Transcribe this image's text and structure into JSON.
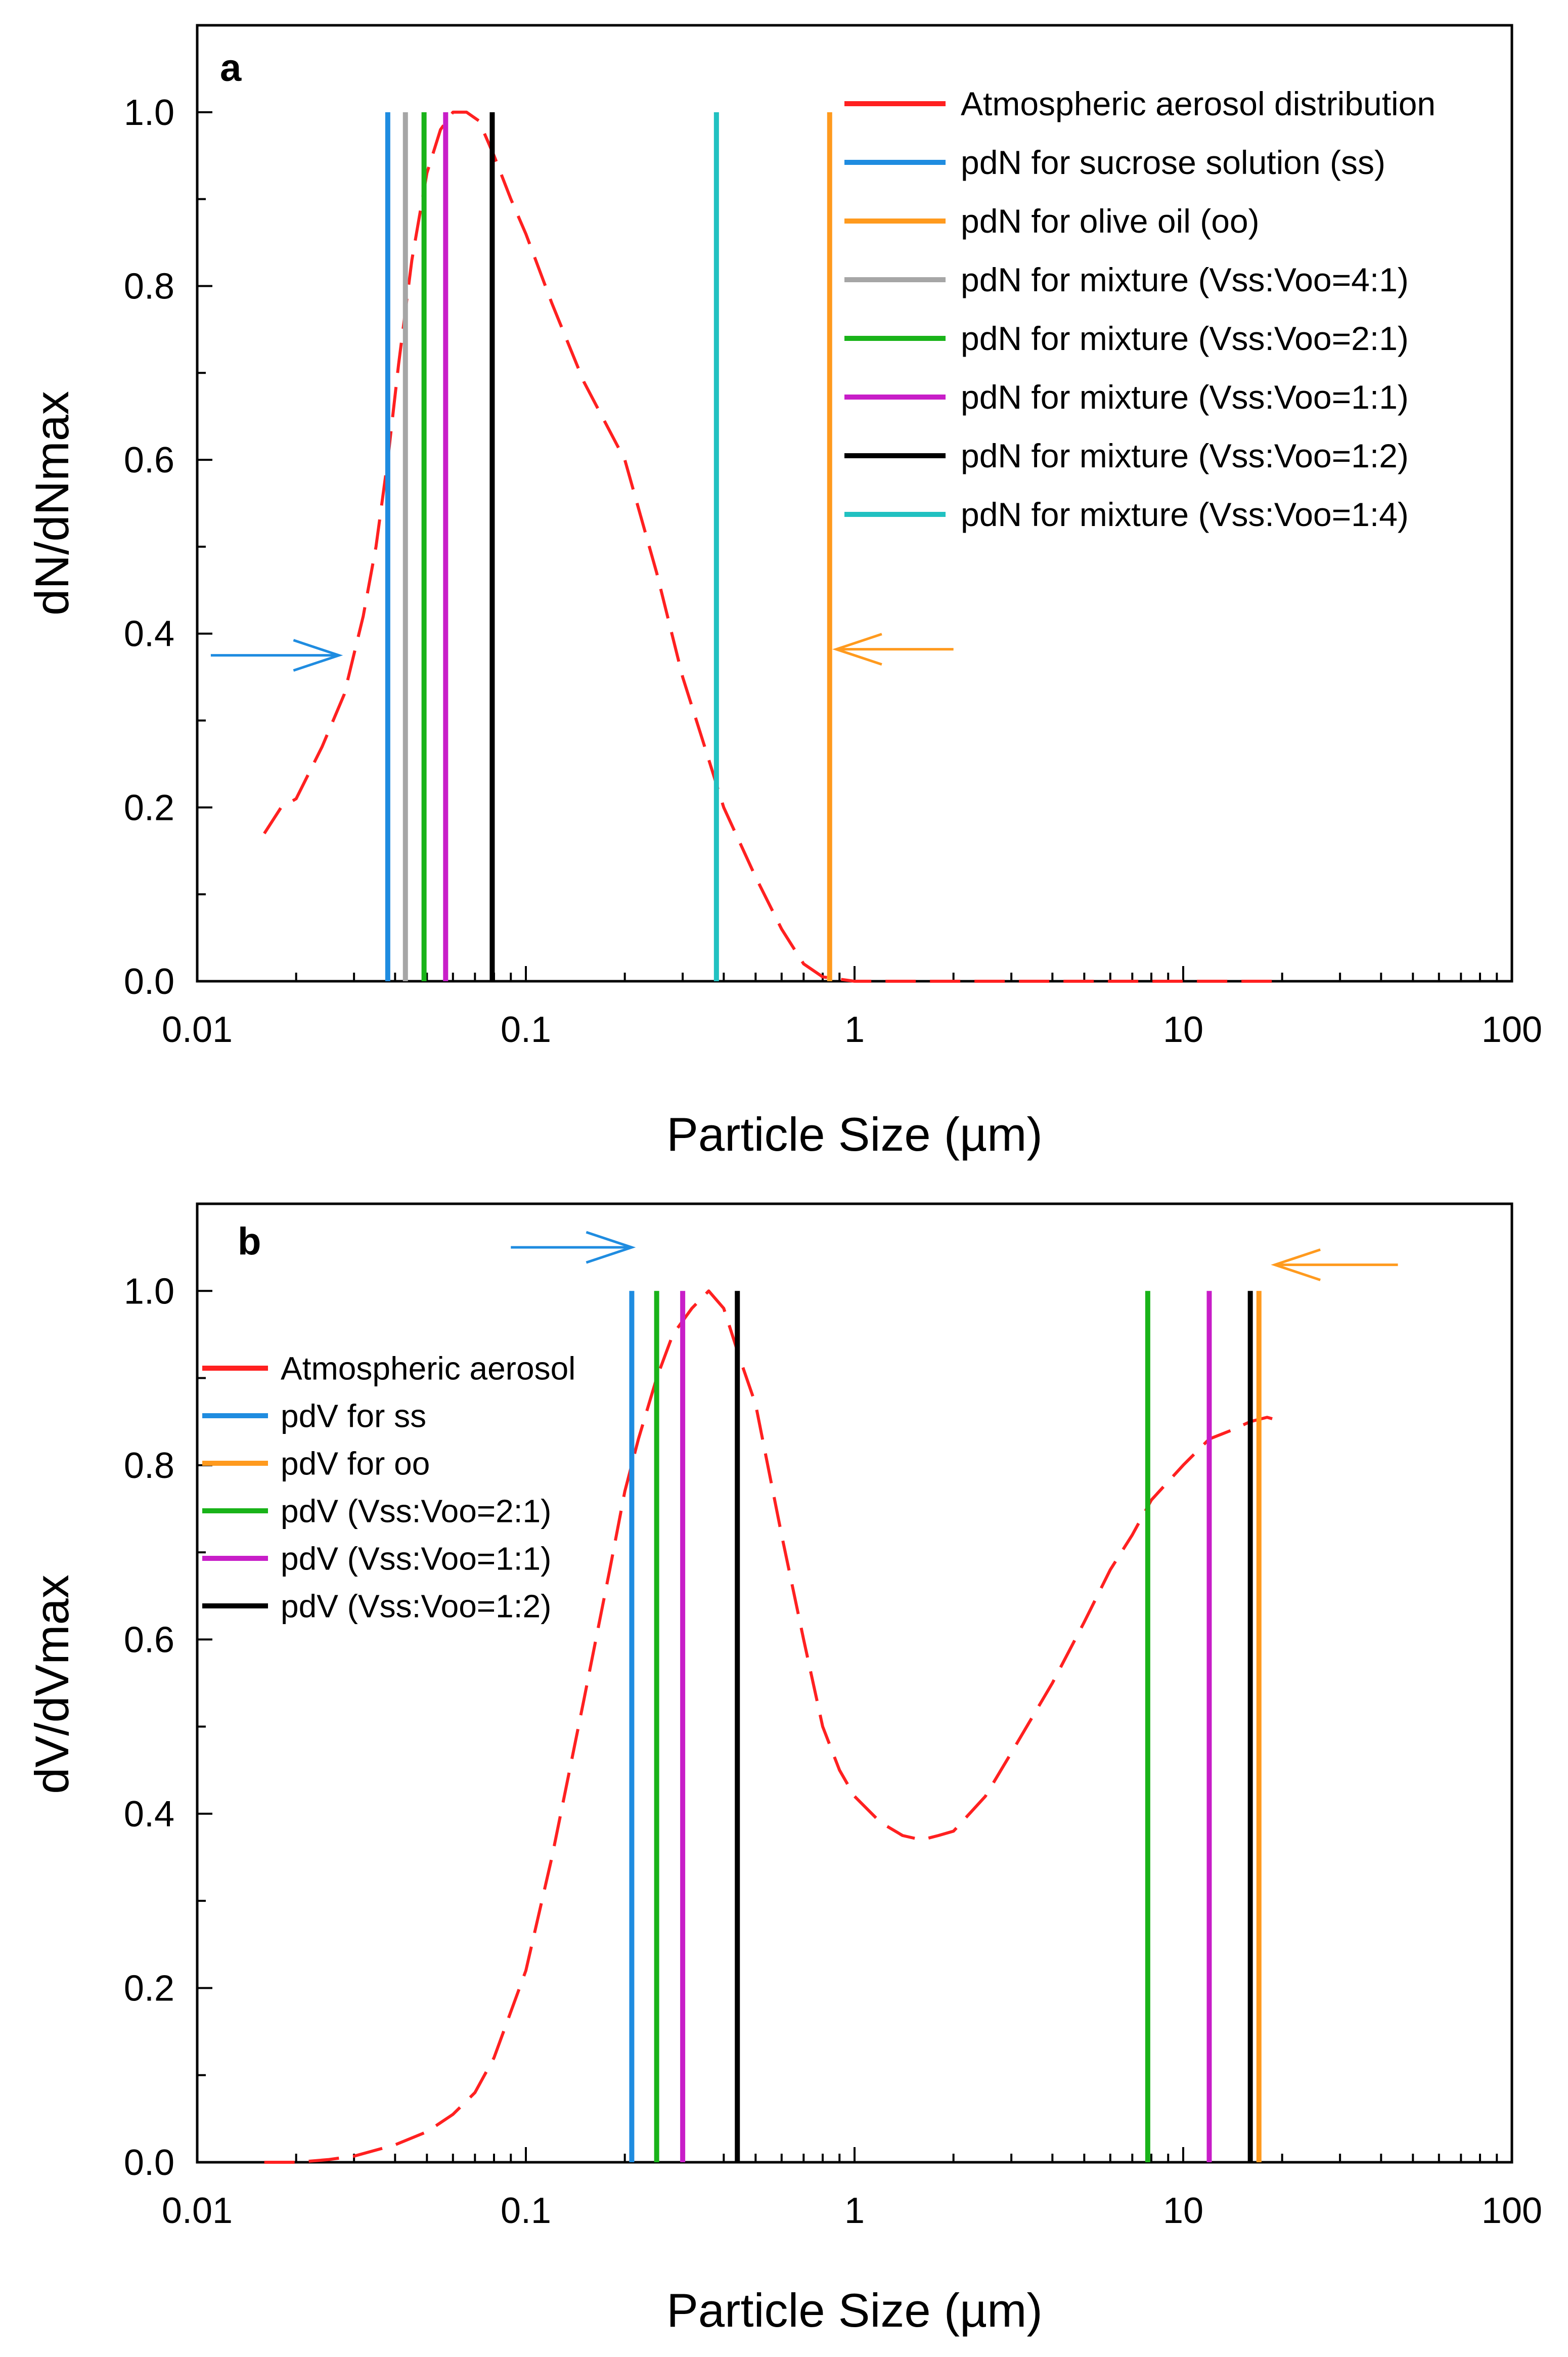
{
  "chart_data": [
    {
      "type": "line",
      "panel_label": "a",
      "xlabel": "Particle Size (µm)",
      "ylabel": "dN/dNmax",
      "x_scale": "log",
      "xlim": [
        0.01,
        100
      ],
      "ylim": [
        0,
        1.1
      ],
      "x_ticks": [
        "0.01",
        "0.1",
        "1",
        "10",
        "100"
      ],
      "y_ticks": [
        "0.0",
        "0.2",
        "0.4",
        "0.6",
        "0.8",
        "1.0"
      ],
      "legend_position": "top-right",
      "curve": {
        "name": "Atmospheric aerosol distribution",
        "color": "#ff2020",
        "dashed": true,
        "x": [
          0.016,
          0.018,
          0.02,
          0.024,
          0.028,
          0.032,
          0.035,
          0.038,
          0.041,
          0.045,
          0.05,
          0.055,
          0.06,
          0.066,
          0.072,
          0.08,
          0.09,
          0.1,
          0.12,
          0.15,
          0.2,
          0.25,
          0.3,
          0.35,
          0.4,
          0.5,
          0.6,
          0.7,
          0.8,
          1.0,
          1.5,
          2,
          3,
          5,
          10,
          20
        ],
        "y": [
          0.17,
          0.2,
          0.21,
          0.27,
          0.33,
          0.42,
          0.5,
          0.6,
          0.71,
          0.83,
          0.93,
          0.98,
          1.0,
          1.0,
          0.99,
          0.95,
          0.9,
          0.86,
          0.78,
          0.69,
          0.6,
          0.47,
          0.35,
          0.27,
          0.2,
          0.12,
          0.06,
          0.02,
          0.005,
          0.0,
          0.0,
          0.0,
          0.0,
          0.0,
          0.0,
          0.0
        ]
      },
      "series": [
        {
          "name": "pdN for sucrose solution (ss)",
          "x": 0.038,
          "color": "#1f8ce0"
        },
        {
          "name": "pdN for olive oil (oo)",
          "x": 0.84,
          "color": "#ff9a1e"
        },
        {
          "name": "pdN for mixture (Vss:Voo=4:1)",
          "x": 0.043,
          "color": "#a6a6a6"
        },
        {
          "name": "pdN for mixture (Vss:Voo=2:1)",
          "x": 0.049,
          "color": "#19b319"
        },
        {
          "name": "pdN for mixture (Vss:Voo=1:1)",
          "x": 0.057,
          "color": "#c81ec8"
        },
        {
          "name": "pdN for mixture (Vss:Voo=1:2)",
          "x": 0.079,
          "color": "#000000"
        },
        {
          "name": "pdN for mixture (Vss:Voo=1:4)",
          "x": 0.38,
          "color": "#21c1c1"
        }
      ],
      "arrows": [
        {
          "direction": "right",
          "color": "#1f8ce0",
          "x_from": 0.011,
          "x_to": 0.027,
          "y": 0.375
        },
        {
          "direction": "left",
          "color": "#ff9a1e",
          "x_from": 2.0,
          "x_to": 0.88,
          "y": 0.382
        }
      ]
    },
    {
      "type": "line",
      "panel_label": "b",
      "xlabel": "Particle Size (µm)",
      "ylabel": "dV/dVmax",
      "x_scale": "log",
      "xlim": [
        0.01,
        100
      ],
      "ylim": [
        0,
        1.1
      ],
      "x_ticks": [
        "0.01",
        "0.1",
        "1",
        "10",
        "100"
      ],
      "y_ticks": [
        "0.0",
        "0.2",
        "0.4",
        "0.6",
        "0.8",
        "1.0"
      ],
      "legend_position": "top-left",
      "curve": {
        "name": "Atmospheric aerosol",
        "color": "#ff2020",
        "dashed": true,
        "x": [
          0.016,
          0.02,
          0.025,
          0.03,
          0.04,
          0.05,
          0.06,
          0.07,
          0.08,
          0.1,
          0.12,
          0.15,
          0.18,
          0.2,
          0.22,
          0.25,
          0.28,
          0.32,
          0.36,
          0.4,
          0.45,
          0.5,
          0.6,
          0.7,
          0.8,
          0.9,
          1.0,
          1.2,
          1.4,
          1.6,
          1.8,
          2.0,
          2.5,
          3,
          4,
          5,
          6,
          7,
          8,
          10,
          12,
          14,
          16,
          18,
          20
        ],
        "y": [
          0.0,
          0.0,
          0.003,
          0.007,
          0.02,
          0.035,
          0.055,
          0.08,
          0.12,
          0.22,
          0.35,
          0.53,
          0.68,
          0.77,
          0.83,
          0.9,
          0.95,
          0.98,
          1.0,
          0.98,
          0.92,
          0.87,
          0.72,
          0.6,
          0.5,
          0.45,
          0.42,
          0.39,
          0.375,
          0.37,
          0.375,
          0.38,
          0.42,
          0.47,
          0.55,
          0.62,
          0.68,
          0.72,
          0.76,
          0.8,
          0.83,
          0.84,
          0.85,
          0.855,
          0.85
        ]
      },
      "series": [
        {
          "name": "pdV for ss",
          "x": 0.21,
          "color": "#1f8ce0"
        },
        {
          "name": "pdV for oo",
          "x": 17.0,
          "color": "#ff9a1e"
        },
        {
          "name": "pdV (Vss:Voo=2:1)",
          "x": 0.25,
          "color": "#19b319",
          "x2": 7.8
        },
        {
          "name": "pdV (Vss:Voo=1:1)",
          "x": 0.3,
          "color": "#c81ec8",
          "x2": 12.0
        },
        {
          "name": "pdV (Vss:Voo=1:2)",
          "x": 0.44,
          "color": "#000000",
          "x2": 16.0
        }
      ],
      "arrows": [
        {
          "direction": "right",
          "color": "#1f8ce0",
          "x_from": 0.09,
          "x_to": 0.21,
          "y": 1.05
        },
        {
          "direction": "left",
          "color": "#ff9a1e",
          "x_from": 45.0,
          "x_to": 19.0,
          "y": 1.03
        }
      ]
    }
  ]
}
